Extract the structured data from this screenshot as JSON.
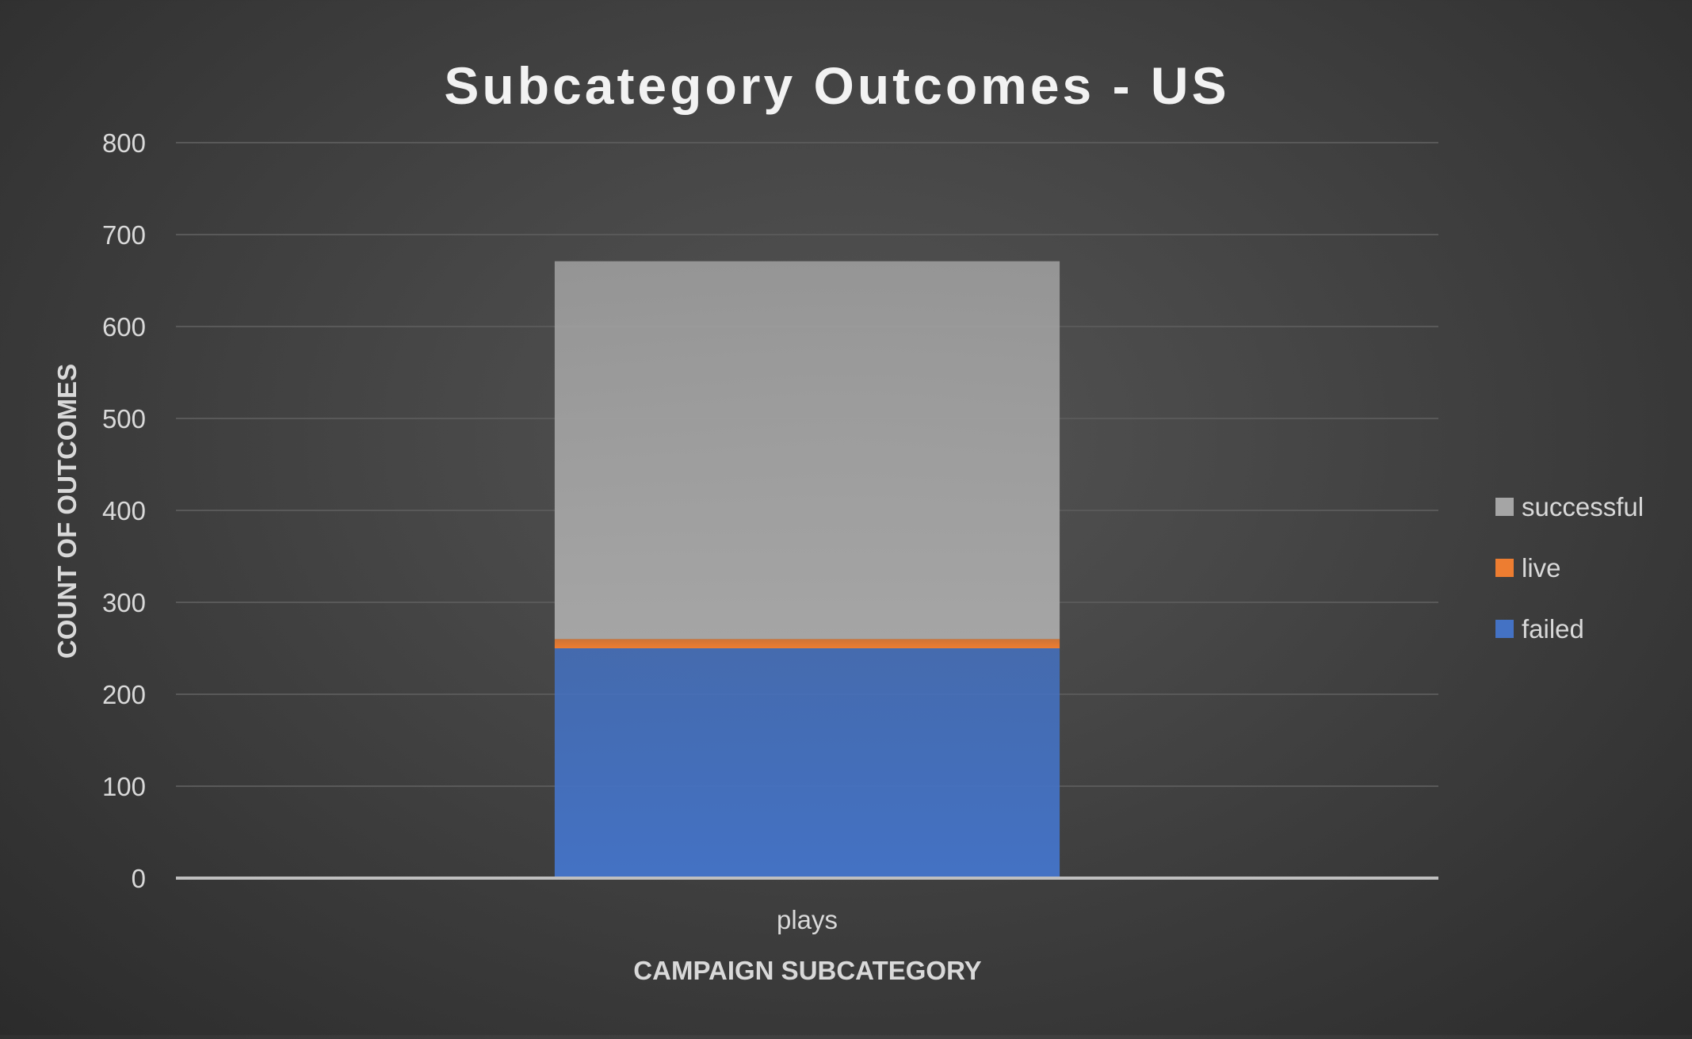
{
  "chart_data": {
    "type": "bar",
    "stacked": true,
    "title": "Subcategory Outcomes - US",
    "xlabel": "CAMPAIGN SUBCATEGORY",
    "ylabel": "COUNT OF OUTCOMES",
    "categories": [
      "plays"
    ],
    "series": [
      {
        "name": "failed",
        "values": [
          250
        ],
        "color": "#4472C4"
      },
      {
        "name": "live",
        "values": [
          10
        ],
        "color": "#ED7D31"
      },
      {
        "name": "successful",
        "values": [
          411
        ],
        "color": "#A5A5A5"
      }
    ],
    "ylim": [
      0,
      800
    ],
    "yticks": [
      0,
      100,
      200,
      300,
      400,
      500,
      600,
      700,
      800
    ],
    "grid": true,
    "legend_position": "right",
    "legend_order": [
      "successful",
      "live",
      "failed"
    ],
    "colors": {
      "background": "#404040",
      "text": "#D9D9D9",
      "title": "#F2F2F2",
      "gridline": "#595959",
      "axis_line": "#BFBFBF"
    }
  }
}
